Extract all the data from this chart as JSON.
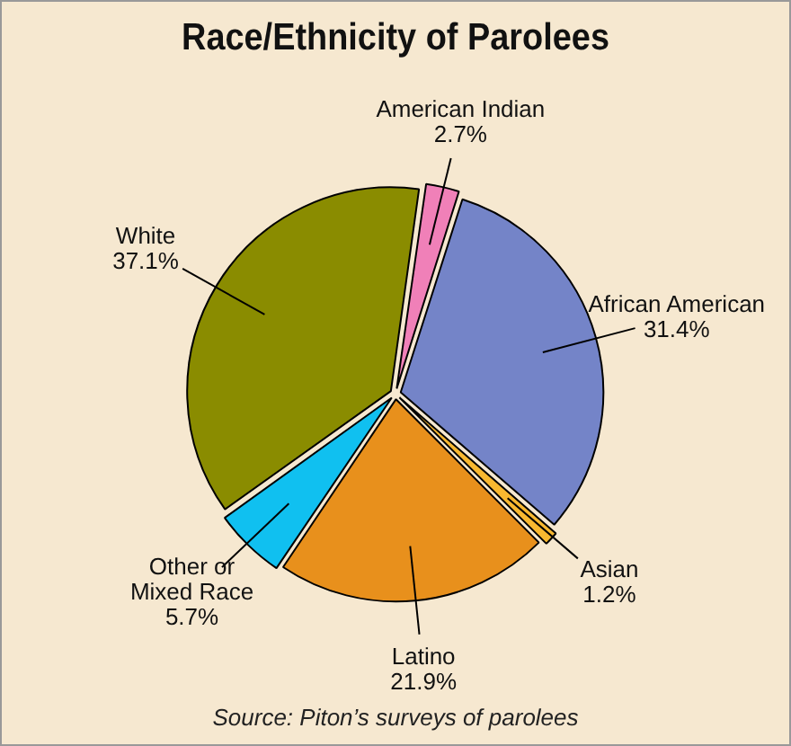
{
  "chart_data": {
    "type": "pie",
    "title": "Race/Ethnicity of Parolees",
    "categories": [
      "American Indian",
      "African American",
      "Asian",
      "Latino",
      "Other or Mixed Race",
      "White"
    ],
    "values": [
      2.7,
      31.4,
      1.2,
      21.9,
      5.7,
      37.1
    ],
    "colors": [
      "#f080b8",
      "#7484c8",
      "#f8b830",
      "#e8901c",
      "#10c0f0",
      "#8a8c00"
    ],
    "value_labels": [
      "2.7%",
      "31.4%",
      "1.2%",
      "21.9%",
      "5.7%",
      "37.1%"
    ],
    "legend": false,
    "annotations": [
      "Source: Piton’s surveys of parolees"
    ]
  }
}
